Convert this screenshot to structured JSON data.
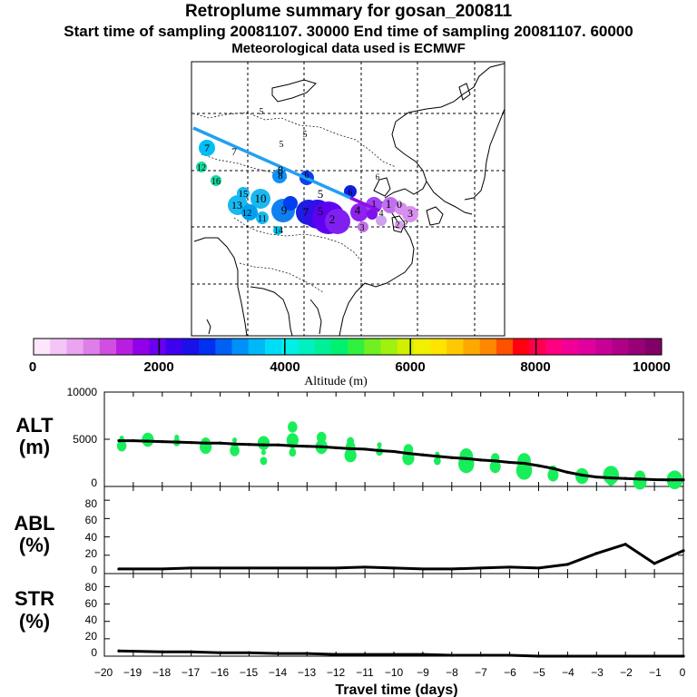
{
  "header": {
    "title": "Retroplume summary for gosan_200811",
    "sampling_line": "Start time of sampling 20081107. 30000     End time of sampling 20081107. 60000",
    "met_line": "Meteorological data used is ECMWF"
  },
  "map": {
    "plume_labels": [
      {
        "t": "7"
      },
      {
        "t": "7"
      },
      {
        "t": "12"
      },
      {
        "t": "16"
      },
      {
        "t": "15"
      },
      {
        "t": "13"
      },
      {
        "t": "12"
      },
      {
        "t": "10"
      },
      {
        "t": "11"
      },
      {
        "t": "14"
      },
      {
        "t": "9"
      },
      {
        "t": "8"
      },
      {
        "t": "8"
      },
      {
        "t": "7"
      },
      {
        "t": "6"
      },
      {
        "t": "5"
      },
      {
        "t": "5"
      },
      {
        "t": "4"
      },
      {
        "t": "3"
      },
      {
        "t": "2"
      },
      {
        "t": "1"
      },
      {
        "t": "0"
      },
      {
        "t": "1"
      },
      {
        "t": "2"
      },
      {
        "t": "2"
      },
      {
        "t": "3"
      },
      {
        "t": "4"
      },
      {
        "t": "5"
      },
      {
        "t": "5"
      },
      {
        "t": "5"
      },
      {
        "t": "6"
      },
      {
        "t": "6"
      }
    ]
  },
  "colorbar": {
    "label": "Altitude (m)",
    "ticks": [
      "0",
      "2000",
      "4000",
      "6000",
      "8000",
      "10000"
    ],
    "colors": [
      "#fbe6fb",
      "#f3c6f5",
      "#eaa4f0",
      "#de7ee8",
      "#d04fe0",
      "#b71ee0",
      "#9100e8",
      "#6a00f0",
      "#3f00f0",
      "#1a10e8",
      "#0030f0",
      "#0060f5",
      "#0090f8",
      "#00b8f8",
      "#00dcf8",
      "#00f0e8",
      "#00f0c0",
      "#00f098",
      "#00f070",
      "#30f040",
      "#70f020",
      "#a0f010",
      "#d0f000",
      "#f0f000",
      "#ffe400",
      "#ffc800",
      "#ffa800",
      "#ff8800",
      "#ff5000",
      "#ff0010",
      "#ff0050",
      "#ff0080",
      "#f00098",
      "#e000a0",
      "#c80098",
      "#b00088",
      "#980078",
      "#800068"
    ]
  },
  "panels": {
    "alt": {
      "label_top": "ALT",
      "label_bottom": "(m)"
    },
    "abl": {
      "label_top": "ABL",
      "label_bottom": "(%)"
    },
    "str": {
      "label_top": "STR",
      "label_bottom": "(%)"
    }
  },
  "chart_data": [
    {
      "type": "line",
      "name": "ALT",
      "ylabel": "ALT (m)",
      "ylim": [
        0,
        10000
      ],
      "yticks": [
        "0",
        "5000",
        "10000"
      ],
      "x": [
        -19.5,
        -19,
        -18.5,
        -18,
        -17.5,
        -17,
        -16.5,
        -16,
        -15.5,
        -15,
        -14.5,
        -14,
        -13.5,
        -13,
        -12.5,
        -12,
        -11.5,
        -11,
        -10.5,
        -10,
        -9.5,
        -9,
        -8.5,
        -8,
        -7.5,
        -7,
        -6.5,
        -6,
        -5.5,
        -5,
        -4.5,
        -4,
        -3.5,
        -3,
        -2.5,
        -2,
        -1.5,
        -1,
        -0.5,
        0
      ],
      "values": [
        4850,
        4850,
        4800,
        4750,
        4700,
        4650,
        4600,
        4600,
        4500,
        4450,
        4400,
        4400,
        4300,
        4250,
        4200,
        4100,
        4000,
        3950,
        3800,
        3700,
        3500,
        3350,
        3200,
        3050,
        2950,
        2800,
        2700,
        2550,
        2450,
        2200,
        1900,
        1500,
        1200,
        1000,
        900,
        850,
        780,
        720,
        700,
        700
      ],
      "scatter_color": "#18ee5a",
      "scatter_points": [
        [
          -19.4,
          5100
        ],
        [
          -19.4,
          4700
        ],
        [
          -19.4,
          4300
        ],
        [
          -18.5,
          4950
        ],
        [
          -17.5,
          5200
        ],
        [
          -17.5,
          4700
        ],
        [
          -16.5,
          4600
        ],
        [
          -16.5,
          4200
        ],
        [
          -15.5,
          4900
        ],
        [
          -15.5,
          4300
        ],
        [
          -15.5,
          3800
        ],
        [
          -14.5,
          4600
        ],
        [
          -14.5,
          3600
        ],
        [
          -14.5,
          2700
        ],
        [
          -13.5,
          6300
        ],
        [
          -13.5,
          4900
        ],
        [
          -13.5,
          4200
        ],
        [
          -13.5,
          3600
        ],
        [
          -12.5,
          5200
        ],
        [
          -12.5,
          4200
        ],
        [
          -12.5,
          3700
        ],
        [
          -11.5,
          4800
        ],
        [
          -11.5,
          4200
        ],
        [
          -11.5,
          3300
        ],
        [
          -10.5,
          4400
        ],
        [
          -10.5,
          3700
        ],
        [
          -9.5,
          3900
        ],
        [
          -9.5,
          3000
        ],
        [
          -8.5,
          3400
        ],
        [
          -8.5,
          2700
        ],
        [
          -7.5,
          3200
        ],
        [
          -7.5,
          2400
        ],
        [
          -6.5,
          3000
        ],
        [
          -6.5,
          2100
        ],
        [
          -5.5,
          2700
        ],
        [
          -5.5,
          1700
        ],
        [
          -4.5,
          1700
        ],
        [
          -4.5,
          1200
        ],
        [
          -3.5,
          1100
        ],
        [
          -2.5,
          1200
        ],
        [
          -2.5,
          600
        ],
        [
          -1.5,
          1000
        ],
        [
          -1.5,
          500
        ],
        [
          -0.3,
          700
        ],
        [
          -0.3,
          300
        ]
      ]
    },
    {
      "type": "line",
      "name": "ABL",
      "ylabel": "ABL (%)",
      "ylim": [
        0,
        95
      ],
      "yticks": [
        "0",
        "20",
        "40",
        "60",
        "80"
      ],
      "x": [
        -19.5,
        -18,
        -17,
        -16,
        -15,
        -14,
        -13,
        -12,
        -11,
        -10,
        -9,
        -8,
        -7,
        -6,
        -5,
        -4,
        -3,
        -2,
        -1,
        0
      ],
      "values": [
        5,
        5,
        6,
        6,
        6,
        6,
        6,
        6,
        7,
        6,
        5,
        5,
        6,
        7,
        6,
        10,
        22,
        32,
        11,
        25
      ]
    },
    {
      "type": "line",
      "name": "STR",
      "ylabel": "STR (%)",
      "ylim": [
        0,
        95
      ],
      "yticks": [
        "0",
        "20",
        "40",
        "60",
        "80"
      ],
      "x": [
        -19.5,
        -18,
        -17,
        -16,
        -15,
        -14,
        -13,
        -12,
        -11,
        -10,
        -9,
        -8,
        -7,
        -6,
        -5,
        -4,
        -3,
        -2,
        -1,
        0
      ],
      "values": [
        6,
        5,
        5,
        4,
        4,
        3,
        3,
        2,
        2,
        2,
        2,
        1,
        1,
        1,
        0,
        0,
        0,
        0,
        0,
        0
      ]
    }
  ],
  "xaxis": {
    "label": "Travel time (days)",
    "xlim": [
      -20,
      0
    ],
    "ticks": [
      "−20",
      "−19",
      "−18",
      "−17",
      "−16",
      "−15",
      "−14",
      "−13",
      "−12",
      "−11",
      "−10",
      "−9",
      "−8",
      "−7",
      "−6",
      "−5",
      "−4",
      "−3",
      "−2",
      "−1",
      "0"
    ]
  }
}
